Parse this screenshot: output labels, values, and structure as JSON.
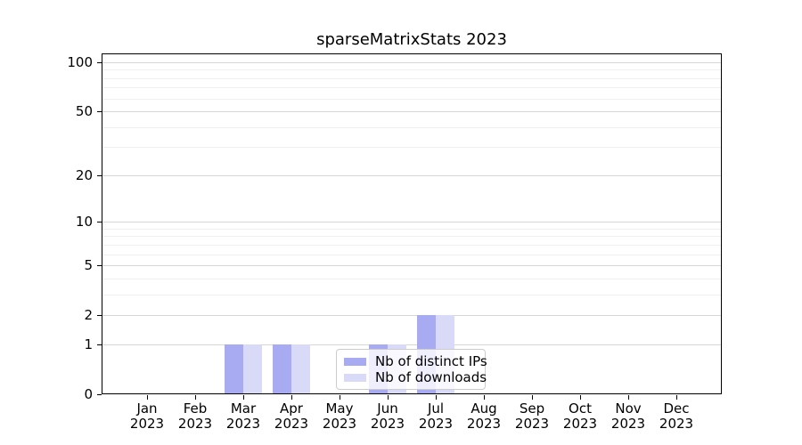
{
  "title": "sparseMatrixStats 2023",
  "chart_data": {
    "type": "bar",
    "title": "sparseMatrixStats 2023",
    "x_months": [
      "Jan",
      "Feb",
      "Mar",
      "Apr",
      "May",
      "Jun",
      "Jul",
      "Aug",
      "Sep",
      "Oct",
      "Nov",
      "Dec"
    ],
    "x_year": "2023",
    "series": [
      {
        "name": "Nb of distinct IPs",
        "color": "#a9abf2",
        "values": [
          0,
          0,
          1,
          1,
          0,
          1,
          2,
          0,
          0,
          0,
          0,
          0
        ]
      },
      {
        "name": "Nb of downloads",
        "color": "#d9daf7",
        "values": [
          0,
          0,
          1,
          1,
          0,
          1,
          2,
          0,
          0,
          0,
          0,
          0
        ]
      }
    ],
    "y_axis": {
      "scale": "log1p",
      "major_ticks": [
        0,
        1,
        2,
        5,
        10,
        20,
        50,
        100
      ],
      "minor_gridlines": [
        3,
        4,
        6,
        7,
        8,
        9,
        30,
        40,
        60,
        70,
        80,
        90
      ],
      "range": [
        0,
        113
      ]
    },
    "legend": {
      "position": "lower center"
    },
    "grid": true,
    "colors": {
      "grid_major": "#d6d6d6",
      "grid_minor": "#efefef",
      "axis": "#000000",
      "legend_border": "#cccccc",
      "background": "#ffffff"
    }
  }
}
